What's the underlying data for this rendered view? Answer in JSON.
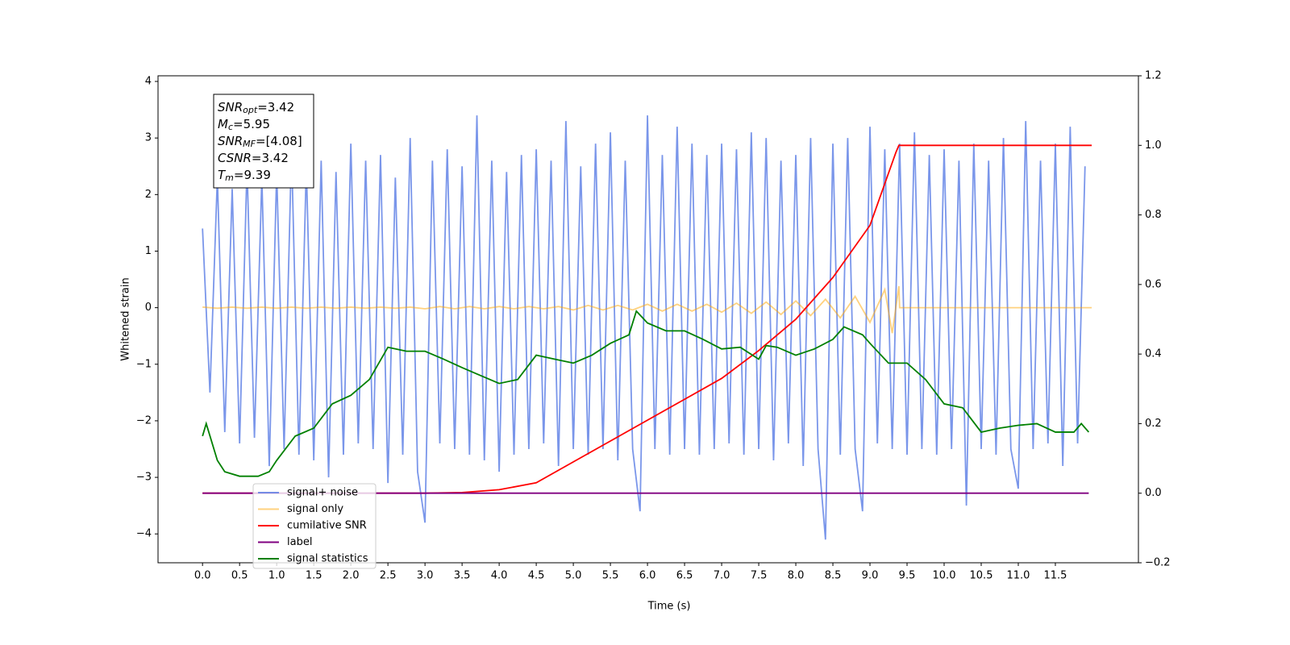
{
  "chart_data": {
    "type": "line",
    "xlabel": "Time (s)",
    "ylabel": "Whitened strain",
    "xlim": [
      -0.6,
      12.62
    ],
    "ylim": [
      -4.51,
      4.1
    ],
    "y2lim": [
      -0.2,
      1.2
    ],
    "xticks": [
      {
        "value": 0,
        "label": "0.0"
      },
      {
        "value": 0.5,
        "label": "0.5"
      },
      {
        "value": 1,
        "label": "1.0"
      },
      {
        "value": 1.5,
        "label": "1.5"
      },
      {
        "value": 2,
        "label": "2.0"
      },
      {
        "value": 2.5,
        "label": "2.5"
      },
      {
        "value": 3,
        "label": "3.0"
      },
      {
        "value": 3.5,
        "label": "3.5"
      },
      {
        "value": 4,
        "label": "4.0"
      },
      {
        "value": 4.5,
        "label": "4.5"
      },
      {
        "value": 5,
        "label": "5.0"
      },
      {
        "value": 5.5,
        "label": "5.5"
      },
      {
        "value": 6,
        "label": "6.0"
      },
      {
        "value": 6.5,
        "label": "6.5"
      },
      {
        "value": 7,
        "label": "7.0"
      },
      {
        "value": 7.5,
        "label": "7.5"
      },
      {
        "value": 8,
        "label": "8.0"
      },
      {
        "value": 8.5,
        "label": "8.5"
      },
      {
        "value": 9,
        "label": "9.0"
      },
      {
        "value": 9.5,
        "label": "9.5"
      },
      {
        "value": 10,
        "label": "10.0"
      },
      {
        "value": 10.5,
        "label": "10.5"
      },
      {
        "value": 11,
        "label": "11.0"
      },
      {
        "value": 11.5,
        "label": "11.5"
      }
    ],
    "yticks": [
      {
        "value": -4,
        "label": "−4"
      },
      {
        "value": -3,
        "label": "−3"
      },
      {
        "value": -2,
        "label": "−2"
      },
      {
        "value": -1,
        "label": "−1"
      },
      0,
      1,
      2,
      3,
      4
    ],
    "y2ticks": [
      {
        "value": -0.2,
        "label": "−0.2"
      },
      {
        "value": 0,
        "label": "0.0"
      },
      {
        "value": 0.2,
        "label": "0.2"
      },
      {
        "value": 0.4,
        "label": "0.4"
      },
      {
        "value": 0.6,
        "label": "0.6"
      },
      {
        "value": 0.8,
        "label": "0.8"
      },
      {
        "value": 1,
        "label": "1.0"
      },
      {
        "value": 1.2,
        "label": "1.2"
      }
    ],
    "annotation": [
      {
        "main": "SNR",
        "sub": "opt",
        "rest": "=3.42"
      },
      {
        "main": "M",
        "sub": "c",
        "rest": "=5.95"
      },
      {
        "main": "SNR",
        "sub": "MF",
        "rest": "=[4.08]"
      },
      {
        "main": "CSNR",
        "rest": "=3.42"
      },
      {
        "main": "T",
        "sub": "m",
        "rest": "=9.39"
      }
    ],
    "series": [
      {
        "name": "signal+ noise",
        "color": "#4169e1",
        "alpha": 0.7,
        "x": [
          0,
          0.1,
          0.2,
          0.3,
          0.4,
          0.5,
          0.6,
          0.7,
          0.8,
          0.9,
          1,
          1.1,
          1.2,
          1.3,
          1.4,
          1.5,
          1.6,
          1.7,
          1.8,
          1.9,
          2,
          2.1,
          2.2,
          2.3,
          2.4,
          2.5,
          2.6,
          2.7,
          2.8,
          2.9,
          3,
          3.1,
          3.2,
          3.3,
          3.4,
          3.5,
          3.6,
          3.7,
          3.8,
          3.9,
          4,
          4.1,
          4.2,
          4.3,
          4.4,
          4.5,
          4.6,
          4.7,
          4.8,
          4.9,
          5,
          5.1,
          5.2,
          5.3,
          5.4,
          5.5,
          5.6,
          5.7,
          5.8,
          5.9,
          6,
          6.1,
          6.2,
          6.3,
          6.4,
          6.5,
          6.6,
          6.7,
          6.8,
          6.9,
          7,
          7.1,
          7.2,
          7.3,
          7.4,
          7.5,
          7.6,
          7.7,
          7.8,
          7.9,
          8,
          8.1,
          8.2,
          8.3,
          8.4,
          8.5,
          8.6,
          8.7,
          8.8,
          8.9,
          9,
          9.1,
          9.2,
          9.3,
          9.4,
          9.5,
          9.6,
          9.7,
          9.8,
          9.9,
          10,
          10.1,
          10.2,
          10.3,
          10.4,
          10.5,
          10.6,
          10.7,
          10.8,
          10.9,
          11,
          11.1,
          11.2,
          11.3,
          11.4,
          11.5,
          11.6,
          11.7,
          11.8,
          11.9
        ],
        "values": [
          1.4,
          -1.5,
          2.3,
          -2.2,
          2.1,
          -2.4,
          2.5,
          -2.3,
          2.3,
          -2.8,
          2.4,
          -2.5,
          2.8,
          -2.6,
          2.5,
          -2.7,
          2.6,
          -3.0,
          2.4,
          -2.6,
          2.9,
          -2.4,
          2.6,
          -2.5,
          2.7,
          -3.1,
          2.3,
          -2.6,
          3.0,
          -2.9,
          -3.8,
          2.6,
          -2.4,
          2.8,
          -2.5,
          2.5,
          -2.6,
          3.4,
          -2.7,
          2.6,
          -2.9,
          2.4,
          -2.6,
          2.7,
          -2.5,
          2.8,
          -2.4,
          2.6,
          -2.8,
          3.3,
          -2.5,
          2.5,
          -2.6,
          2.9,
          -2.5,
          3.1,
          -2.7,
          2.6,
          -2.5,
          -3.6,
          3.4,
          -2.5,
          2.7,
          -2.6,
          3.2,
          -2.5,
          2.9,
          -2.6,
          2.7,
          -2.5,
          2.9,
          -2.4,
          2.8,
          -2.6,
          3.1,
          -2.5,
          3.0,
          -2.7,
          2.6,
          -2.4,
          2.7,
          -2.8,
          3.0,
          -2.5,
          -4.1,
          2.9,
          -2.6,
          3.0,
          -2.5,
          -3.6,
          3.2,
          -2.4,
          2.8,
          -2.5,
          2.9,
          -2.6,
          3.1,
          -2.5,
          2.7,
          -2.6,
          2.8,
          -2.5,
          2.6,
          -3.5,
          2.9,
          -2.5,
          2.6,
          -2.6,
          3.0,
          -2.5,
          -3.2,
          3.3,
          -2.5,
          2.6,
          -2.4,
          2.9,
          -2.8,
          3.2,
          -2.4,
          2.5
        ]
      },
      {
        "name": "signal only",
        "color": "#ffa500",
        "alpha": 0.5,
        "x": [
          0,
          0.2,
          0.4,
          0.6,
          0.8,
          1,
          1.2,
          1.4,
          1.6,
          1.8,
          2,
          2.2,
          2.4,
          2.6,
          2.8,
          3,
          3.2,
          3.4,
          3.6,
          3.8,
          4,
          4.2,
          4.4,
          4.6,
          4.8,
          5,
          5.2,
          5.4,
          5.6,
          5.8,
          6,
          6.2,
          6.4,
          6.6,
          6.8,
          7,
          7.2,
          7.4,
          7.6,
          7.8,
          8,
          8.2,
          8.4,
          8.6,
          8.8,
          9,
          9.2,
          9.3,
          9.39,
          9.4,
          11.99
        ],
        "values": [
          0.01,
          -0.01,
          0.01,
          -0.01,
          0.01,
          -0.01,
          0.01,
          -0.01,
          0.01,
          -0.01,
          0.01,
          -0.01,
          0.01,
          -0.01,
          0.01,
          -0.02,
          0.02,
          -0.02,
          0.02,
          -0.02,
          0.02,
          -0.02,
          0.02,
          -0.02,
          0.02,
          -0.04,
          0.04,
          -0.04,
          0.04,
          -0.04,
          0.06,
          -0.06,
          0.06,
          -0.06,
          0.06,
          -0.08,
          0.08,
          -0.1,
          0.1,
          -0.12,
          0.12,
          -0.14,
          0.15,
          -0.18,
          0.2,
          -0.26,
          0.32,
          -0.45,
          0.38,
          0,
          0
        ]
      },
      {
        "name": "cumilative SNR",
        "color": "#ff0000",
        "axis": "y2",
        "x": [
          0,
          3,
          3.5,
          4,
          4.5,
          5,
          5.5,
          6,
          6.5,
          7,
          7.5,
          8,
          8.5,
          9,
          9.2,
          9.35,
          9.39,
          11.99
        ],
        "values": [
          0,
          0,
          0.002,
          0.01,
          0.03,
          0.09,
          0.15,
          0.21,
          0.27,
          0.33,
          0.41,
          0.5,
          0.62,
          0.77,
          0.89,
          0.98,
          1.0,
          1.0
        ]
      },
      {
        "name": "label",
        "color": "#800080",
        "axis": "y2",
        "x": [
          0,
          11.95
        ],
        "values": [
          0,
          0
        ]
      },
      {
        "name": "signal statistics",
        "color": "#008000",
        "x": [
          0,
          0.05,
          0.2,
          0.3,
          0.5,
          0.75,
          0.9,
          1,
          1.25,
          1.5,
          1.75,
          2,
          2.25,
          2.5,
          2.75,
          3,
          3.25,
          3.5,
          3.75,
          4,
          4.25,
          4.5,
          4.75,
          5,
          5.25,
          5.5,
          5.75,
          5.85,
          6,
          6.25,
          6.5,
          6.75,
          7,
          7.25,
          7.5,
          7.6,
          7.75,
          8,
          8.25,
          8.5,
          8.65,
          8.9,
          9,
          9.25,
          9.5,
          9.75,
          10,
          10.25,
          10.5,
          10.75,
          11,
          11.25,
          11.5,
          11.75,
          11.85,
          11.95
        ],
        "values": [
          -2.27,
          -2.05,
          -2.7,
          -2.9,
          -2.98,
          -2.98,
          -2.9,
          -2.7,
          -2.27,
          -2.13,
          -1.7,
          -1.55,
          -1.27,
          -0.7,
          -0.77,
          -0.77,
          -0.91,
          -1.06,
          -1.2,
          -1.34,
          -1.27,
          -0.84,
          -0.91,
          -0.98,
          -0.84,
          -0.63,
          -0.48,
          -0.06,
          -0.27,
          -0.41,
          -0.41,
          -0.56,
          -0.73,
          -0.7,
          -0.91,
          -0.67,
          -0.7,
          -0.84,
          -0.73,
          -0.56,
          -0.34,
          -0.48,
          -0.63,
          -0.98,
          -0.98,
          -1.27,
          -1.7,
          -1.77,
          -2.2,
          -2.13,
          -2.08,
          -2.05,
          -2.2,
          -2.2,
          -2.05,
          -2.2
        ]
      }
    ]
  }
}
